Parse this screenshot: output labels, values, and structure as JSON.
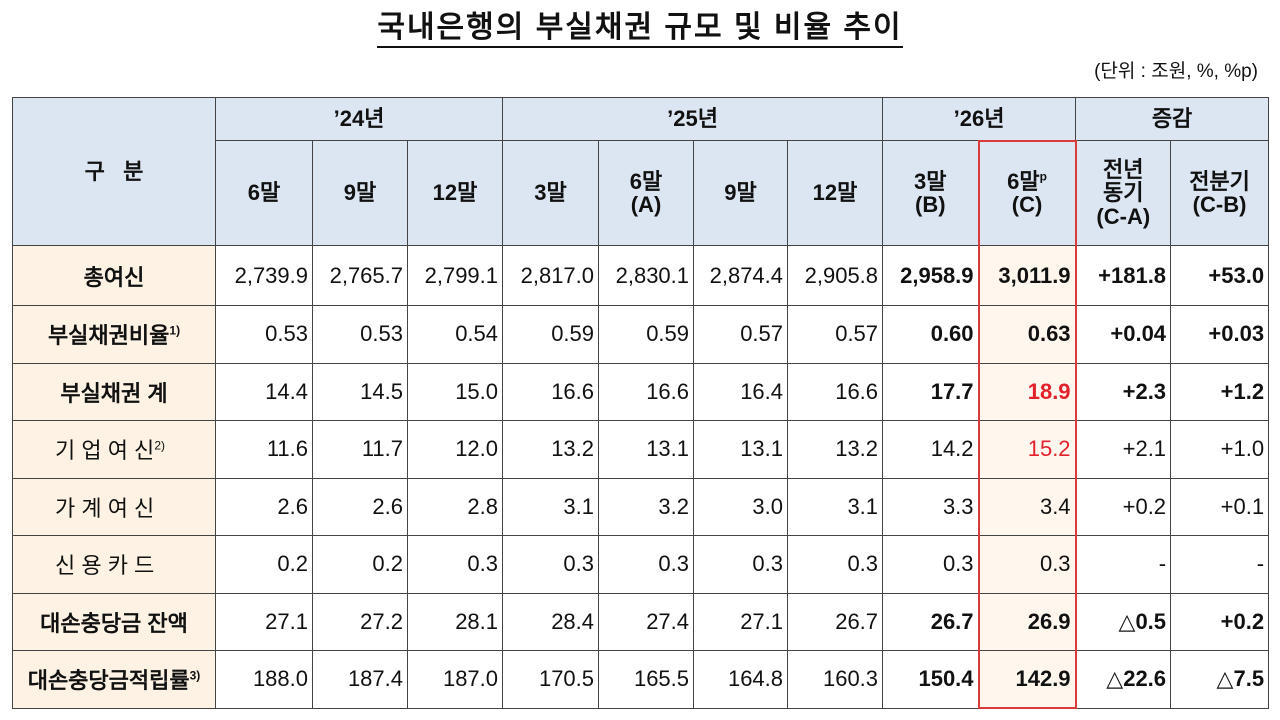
{
  "title": "국내은행의 부실채권 규모 및 비율 추이",
  "unit": "(단위 : 조원, %, %p)",
  "table": {
    "corner": "구   분",
    "groups": [
      {
        "label": "’24년",
        "span": 3
      },
      {
        "label": "’25년",
        "span": 4
      },
      {
        "label": "’26년",
        "span": 2
      },
      {
        "label": "증감",
        "span": 2
      }
    ],
    "columns": [
      {
        "label": "6말"
      },
      {
        "label": "9말"
      },
      {
        "label": "12말"
      },
      {
        "label": "3말"
      },
      {
        "label": "6말",
        "sub": "(A)"
      },
      {
        "label": "9말"
      },
      {
        "label": "12말"
      },
      {
        "label": "3말",
        "sub": "(B)"
      },
      {
        "label": "6말",
        "note": "p",
        "sub": "(C)"
      },
      {
        "label": "전년\n동기",
        "sub": "(C-A)"
      },
      {
        "label": "전분기",
        "sub": "(C-B)"
      }
    ],
    "rows": [
      {
        "label": "총여신",
        "cells": [
          "2,739.9",
          "2,765.7",
          "2,799.1",
          "2,817.0",
          "2,830.1",
          "2,874.4",
          "2,905.8",
          "2,958.9",
          "3,011.9",
          "+181.8",
          "+53.0"
        ]
      },
      {
        "label": "부실채권비율",
        "note": "1)",
        "cells": [
          "0.53",
          "0.53",
          "0.54",
          "0.59",
          "0.59",
          "0.57",
          "0.57",
          "0.60",
          "0.63",
          "+0.04",
          "+0.03"
        ]
      },
      {
        "label": "부실채권 계",
        "cells": [
          "14.4",
          "14.5",
          "15.0",
          "16.6",
          "16.6",
          "16.4",
          "16.6",
          "17.7",
          "18.9",
          "+2.3",
          "+1.2"
        ]
      },
      {
        "label": "기 업 여 신",
        "note": "2)",
        "indent": true,
        "cells": [
          "11.6",
          "11.7",
          "12.0",
          "13.2",
          "13.1",
          "13.1",
          "13.2",
          "14.2",
          "15.2",
          "+2.1",
          "+1.0"
        ]
      },
      {
        "label": "가 계 여 신",
        "indent": true,
        "cells": [
          "2.6",
          "2.6",
          "2.8",
          "3.1",
          "3.2",
          "3.0",
          "3.1",
          "3.3",
          "3.4",
          "+0.2",
          "+0.1"
        ]
      },
      {
        "label": "신 용 카 드",
        "indent": true,
        "cells": [
          "0.2",
          "0.2",
          "0.3",
          "0.3",
          "0.3",
          "0.3",
          "0.3",
          "0.3",
          "0.3",
          "-",
          "-"
        ]
      },
      {
        "label": "대손충당금 잔액",
        "cells": [
          "27.1",
          "27.2",
          "28.1",
          "28.4",
          "27.4",
          "27.1",
          "26.7",
          "26.7",
          "26.9",
          "△0.5",
          "+0.2"
        ]
      },
      {
        "label": "대손충당금적립률",
        "note": "3)",
        "cells": [
          "188.0",
          "187.4",
          "187.0",
          "170.5",
          "165.5",
          "164.8",
          "160.3",
          "150.4",
          "142.9",
          "△22.6",
          "△7.5"
        ]
      }
    ]
  }
}
